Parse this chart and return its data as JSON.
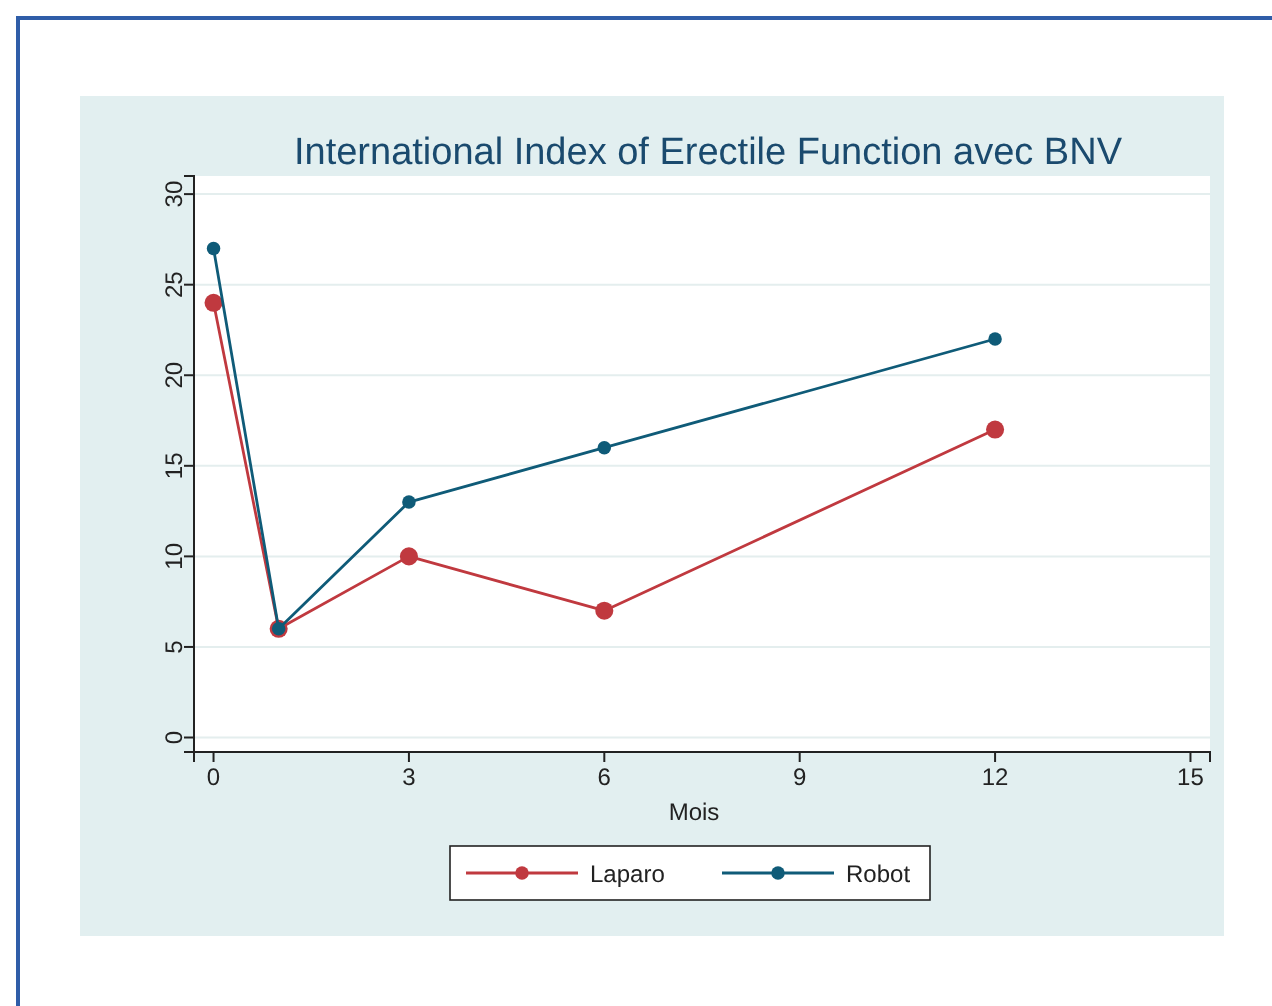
{
  "chart_data": {
    "type": "line",
    "title": "International Index of Erectile Function avec BNV",
    "xlabel": "Mois",
    "x": [
      0,
      1,
      3,
      6,
      12
    ],
    "series": [
      {
        "name": "Laparo",
        "color": "#c0393f",
        "values": [
          24,
          6,
          10,
          7,
          17
        ]
      },
      {
        "name": "Robot",
        "color": "#0f5b78",
        "values": [
          27,
          6,
          13,
          16,
          22
        ]
      }
    ],
    "xlim": [
      -0.3,
      15.3
    ],
    "xticks": [
      0,
      3,
      6,
      9,
      12,
      15
    ],
    "ylim": [
      -0.8,
      31
    ],
    "yticks": [
      0,
      5,
      10,
      15,
      20,
      25,
      30
    ],
    "grid": "y",
    "legend": "bottom",
    "marker": "circle",
    "line_style": "solid"
  }
}
